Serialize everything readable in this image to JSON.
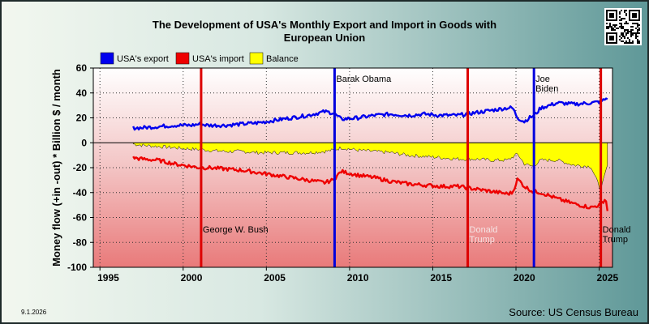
{
  "chart_data": {
    "type": "line",
    "title_line1": "The Development of USA's Monthly Export and Import in Goods with",
    "title_line2": "European Union",
    "ylabel": "Money flow (+in -out) * Billion $ / month",
    "xlim": [
      1994.1,
      2025.3
    ],
    "ylim": [
      -100,
      60
    ],
    "x_ticks": [
      "1995",
      "2000",
      "2005",
      "2010",
      "2015",
      "2020",
      "2025"
    ],
    "y_ticks": [
      "60",
      "40",
      "20",
      "0",
      "-20",
      "-40",
      "-60",
      "-80",
      "-100"
    ],
    "grid": true,
    "legend": [
      "USA's export",
      "USA's import",
      "Balance"
    ],
    "legend_position": "top-left",
    "series": [
      {
        "name": "USA's export",
        "color": "#0000ee",
        "x": [
          1996.5,
          1997,
          1998,
          1999,
          2000,
          2000.5,
          2001,
          2002,
          2003,
          2004,
          2005,
          2006,
          2007,
          2008,
          2008.5,
          2009,
          2010,
          2011,
          2012,
          2013,
          2014,
          2015,
          2016,
          2017,
          2018,
          2019,
          2019.3,
          2019.6,
          2020,
          2020.3,
          2020.6,
          2021,
          2022,
          2023,
          2024,
          2024.6,
          2025
        ],
        "y": [
          12,
          12,
          13,
          14,
          14,
          15,
          14,
          14,
          15,
          16,
          18,
          20,
          22,
          25,
          24,
          19,
          20,
          22,
          23,
          22,
          23,
          22,
          22,
          24,
          26,
          28,
          28,
          20,
          17,
          20,
          22,
          28,
          32,
          31,
          32,
          33,
          36
        ]
      },
      {
        "name": "USA's import",
        "color": "#ee0000",
        "x": [
          1996.5,
          1997,
          1998,
          1999,
          2000,
          2000.5,
          2001,
          2002,
          2003,
          2004,
          2005,
          2006,
          2007,
          2008,
          2008.5,
          2009,
          2010,
          2011,
          2012,
          2013,
          2014,
          2015,
          2016,
          2017,
          2018,
          2019,
          2019.3,
          2019.6,
          2020,
          2020.5,
          2021,
          2022,
          2023,
          2024,
          2024.5,
          2024.9,
          2025
        ],
        "y": [
          -12,
          -13,
          -14,
          -17,
          -19,
          -20,
          -20,
          -21,
          -22,
          -24,
          -26,
          -28,
          -30,
          -32,
          -30,
          -23,
          -26,
          -28,
          -31,
          -33,
          -34,
          -35,
          -35,
          -37,
          -39,
          -41,
          -40,
          -29,
          -35,
          -39,
          -40,
          -45,
          -49,
          -52,
          -50,
          -45,
          -55
        ]
      },
      {
        "name": "Balance",
        "color": "#ffff00",
        "x": [
          1996.5,
          1997,
          1998,
          1999,
          2000,
          2001,
          2002,
          2003,
          2004,
          2005,
          2006,
          2007,
          2008,
          2008.5,
          2009,
          2010,
          2011,
          2012,
          2013,
          2014,
          2015,
          2016,
          2017,
          2018,
          2019,
          2019.6,
          2020,
          2020.5,
          2021,
          2022,
          2023,
          2024,
          2024.6,
          2025
        ],
        "y": [
          -1,
          -2,
          -3,
          -4,
          -5,
          -6,
          -7,
          -7,
          -8,
          -8,
          -8,
          -8,
          -7,
          -6,
          -4,
          -6,
          -7,
          -8,
          -10,
          -11,
          -12,
          -13,
          -13,
          -14,
          -14,
          -9,
          -17,
          -19,
          -14,
          -14,
          -18,
          -19,
          -38,
          -18
        ]
      }
    ],
    "annotations": [
      {
        "x": 2000.58,
        "label": "George W. Bush",
        "line_color": "#dd0000",
        "label_color": "#000000",
        "label_y": -72
      },
      {
        "x": 2008.6,
        "label": "Barak Obama",
        "line_color": "#0000dd",
        "label_color": "#000000",
        "label_y": 49
      },
      {
        "x": 2016.6,
        "label": "Donald Trump",
        "line_color": "#dd0000",
        "label_color": "#f4e4e4",
        "label_y": -72
      },
      {
        "x": 2020.58,
        "label": "Joe Biden",
        "line_color": "#0000dd",
        "label_color": "#000000",
        "label_y": 49
      },
      {
        "x": 2024.6,
        "label": "Donald Trump",
        "line_color": "#dd0000",
        "label_color": "#000000",
        "label_y": -72
      }
    ],
    "source": "Source: US Census Bureau",
    "date_label": "9.1.2026"
  },
  "qr_code": "qr-code-icon"
}
